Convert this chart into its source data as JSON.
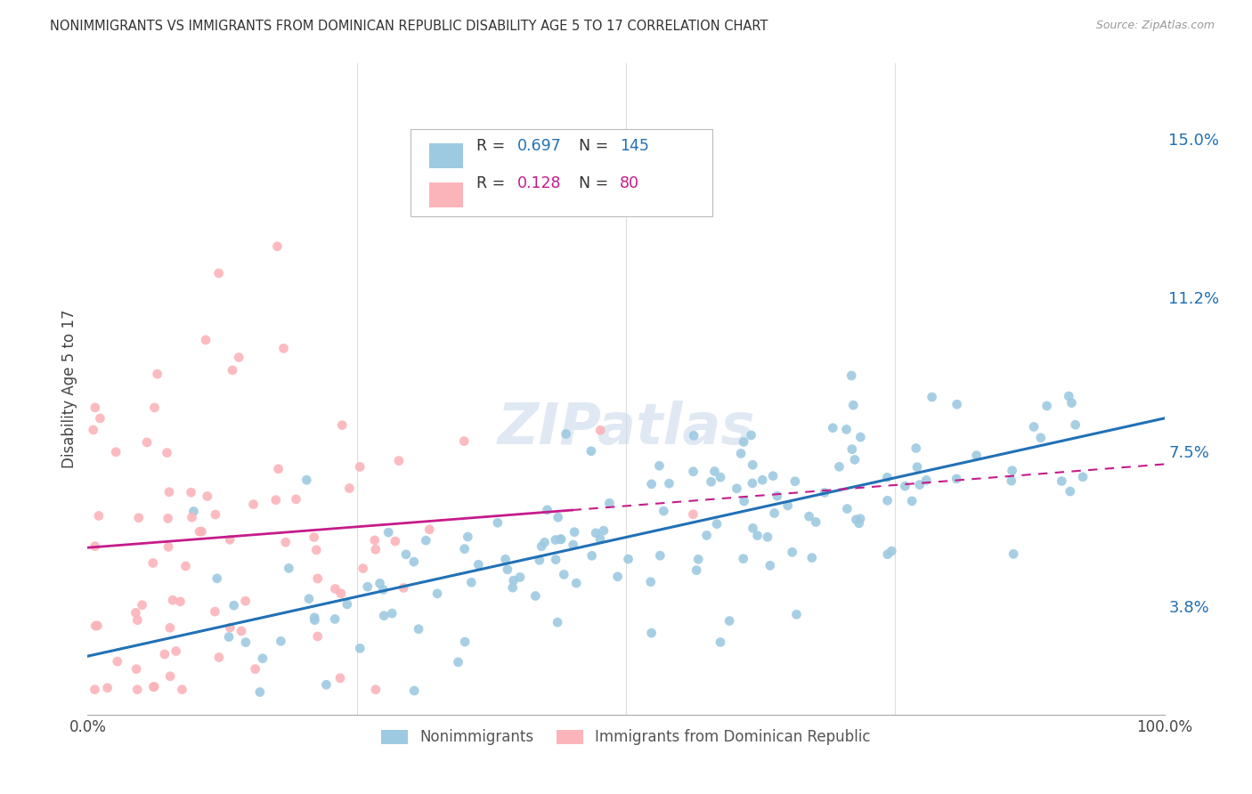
{
  "title": "NONIMMIGRANTS VS IMMIGRANTS FROM DOMINICAN REPUBLIC DISABILITY AGE 5 TO 17 CORRELATION CHART",
  "source": "Source: ZipAtlas.com",
  "ylabel": "Disability Age 5 to 17",
  "ytick_labels": [
    "3.8%",
    "7.5%",
    "11.2%",
    "15.0%"
  ],
  "ytick_values": [
    0.038,
    0.075,
    0.112,
    0.15
  ],
  "xlim": [
    0.0,
    1.0
  ],
  "ylim": [
    0.012,
    0.168
  ],
  "blue_color": "#9ecae1",
  "blue_color_line": "#2171b5",
  "pink_color": "#fbb4b9",
  "pink_color_line": "#c51b8a",
  "legend_blue_R": "0.697",
  "legend_blue_N": "145",
  "legend_pink_R": "0.128",
  "legend_pink_N": "80",
  "blue_n": 145,
  "pink_n": 80,
  "blue_slope": 0.057,
  "blue_intercept": 0.026,
  "pink_slope": 0.02,
  "pink_intercept": 0.052,
  "watermark": "ZIPatlas",
  "background_color": "#ffffff",
  "grid_color": "#dddddd",
  "tick_label_color": "#2171b5"
}
